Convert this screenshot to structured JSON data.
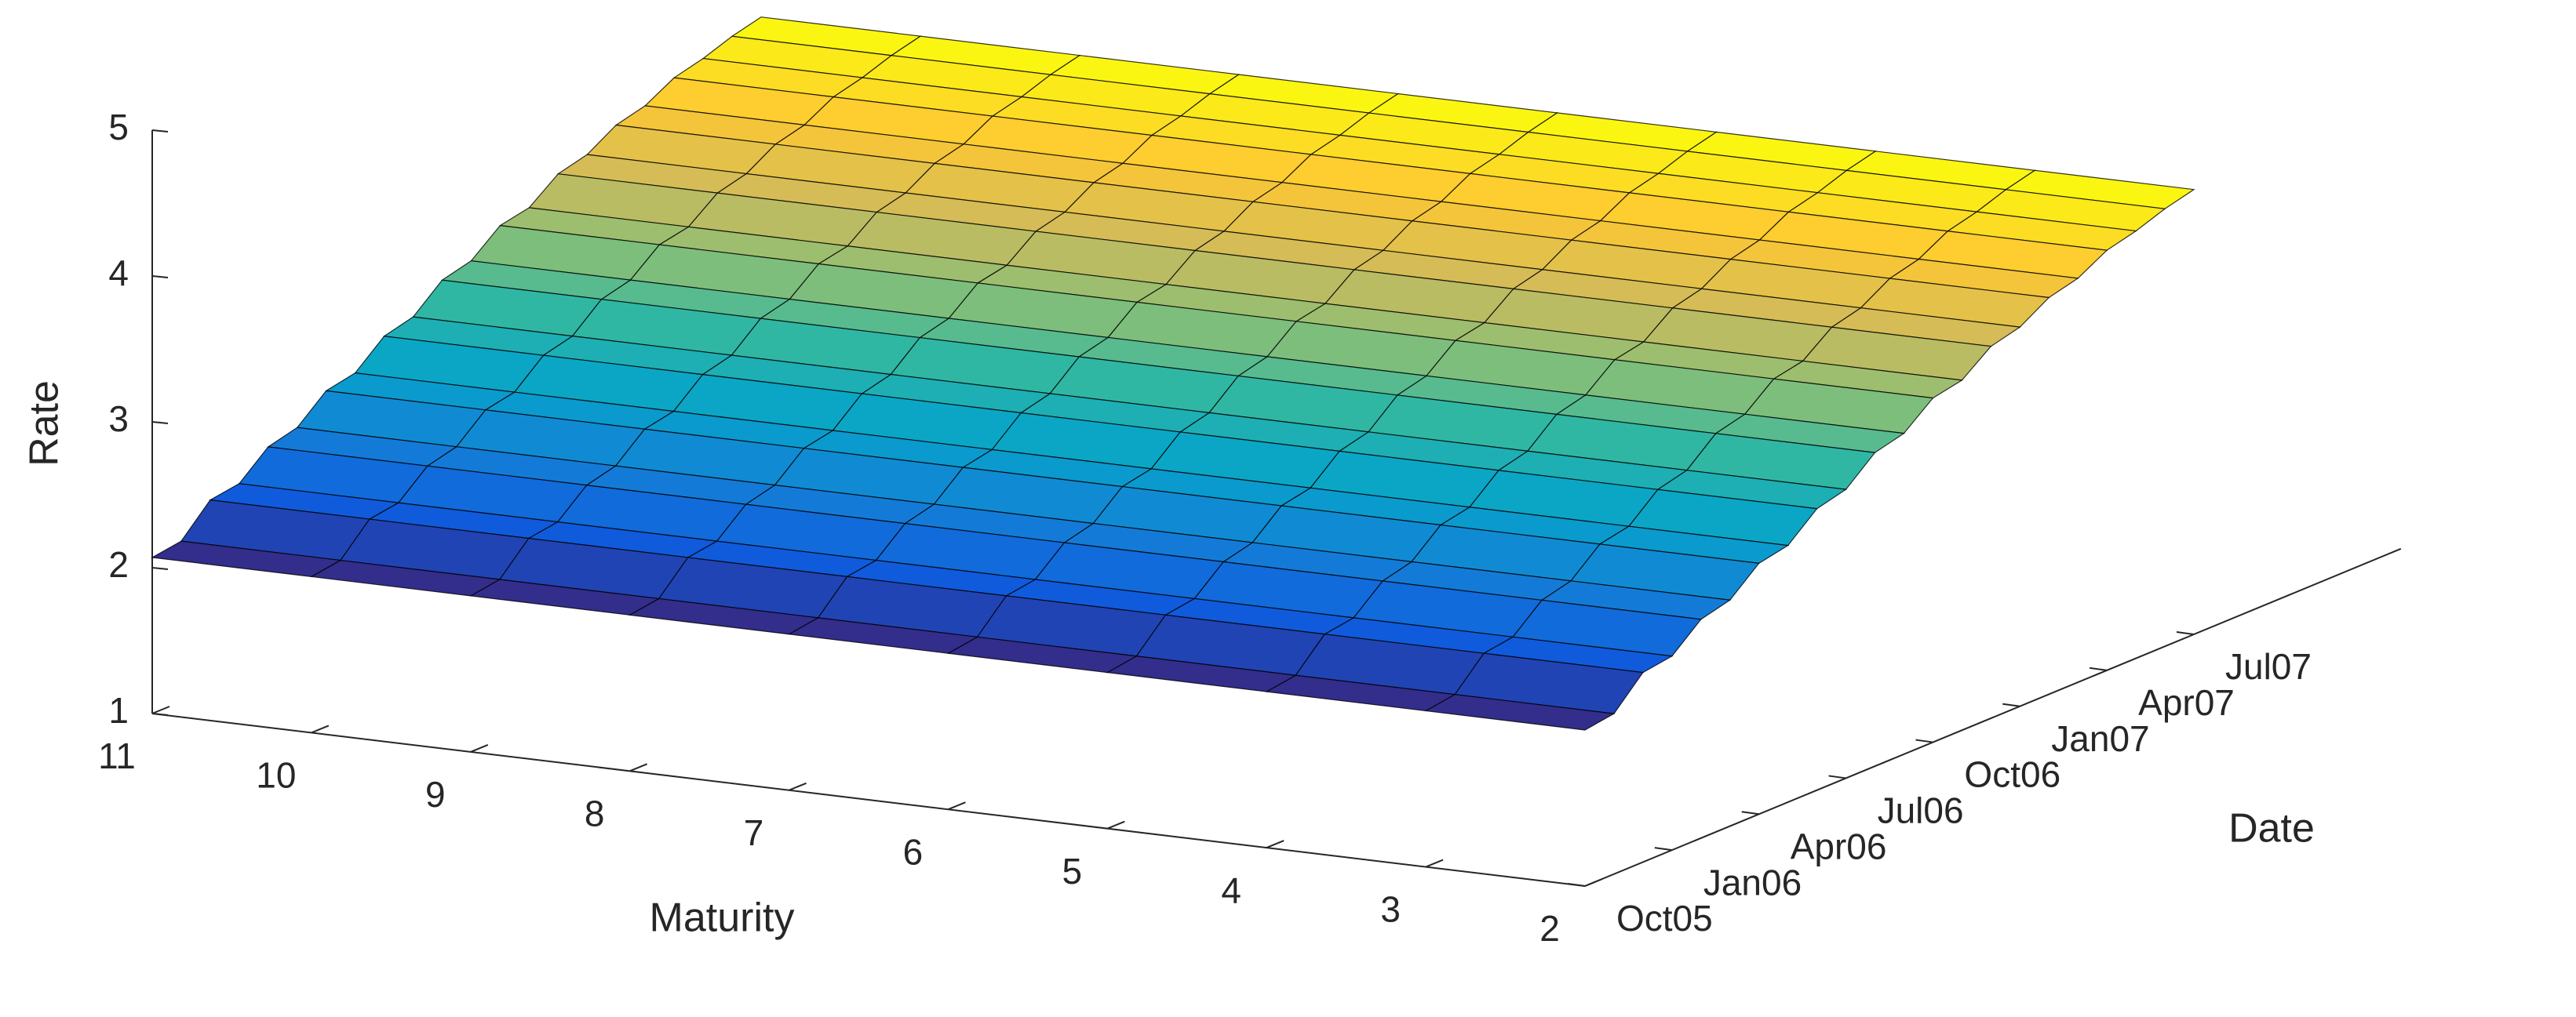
{
  "chart_data": {
    "type": "surface",
    "x_label": "Maturity",
    "y_label": "Date",
    "z_label": "Rate",
    "x": [
      2,
      3,
      4,
      5,
      6,
      7,
      8,
      9,
      10,
      11
    ],
    "xlim": [
      2,
      11
    ],
    "xticks": [
      2,
      3,
      4,
      5,
      6,
      7,
      8,
      9,
      10,
      11
    ],
    "y": [
      "Oct05",
      "Nov05",
      "Dec05",
      "Jan06",
      "Feb06",
      "Mar06",
      "Apr06",
      "May06",
      "Jun06",
      "Jul06",
      "Aug06",
      "Sep06",
      "Oct06",
      "Nov06",
      "Dec06",
      "Jan07",
      "Feb07",
      "Mar07",
      "Apr07",
      "May07",
      "Jun07",
      "Jul07"
    ],
    "yticks": [
      "Oct05",
      "Jan06",
      "Apr06",
      "Jul06",
      "Oct06",
      "Jan07",
      "Apr07",
      "Jul07"
    ],
    "zlim": [
      1,
      5
    ],
    "zticks": [
      1,
      2,
      3,
      4,
      5
    ],
    "z": [
      [
        2.07,
        2.07,
        2.07,
        2.07,
        2.07,
        2.07,
        2.07,
        2.07,
        2.07,
        2.07
      ],
      [
        2.1,
        2.1,
        2.1,
        2.1,
        2.1,
        2.1,
        2.1,
        2.1,
        2.1,
        2.1
      ],
      [
        2.3,
        2.3,
        2.3,
        2.3,
        2.3,
        2.3,
        2.3,
        2.3,
        2.3,
        2.3
      ],
      [
        2.33,
        2.33,
        2.33,
        2.33,
        2.33,
        2.33,
        2.33,
        2.33,
        2.33,
        2.33
      ],
      [
        2.5,
        2.5,
        2.5,
        2.5,
        2.5,
        2.5,
        2.5,
        2.5,
        2.5,
        2.5
      ],
      [
        2.55,
        2.55,
        2.55,
        2.55,
        2.55,
        2.55,
        2.55,
        2.55,
        2.55,
        2.55
      ],
      [
        2.72,
        2.72,
        2.72,
        2.72,
        2.72,
        2.72,
        2.72,
        2.72,
        2.72,
        2.72
      ],
      [
        2.76,
        2.76,
        2.76,
        2.76,
        2.76,
        2.76,
        2.76,
        2.76,
        2.76,
        2.76
      ],
      [
        2.93,
        2.93,
        2.93,
        2.93,
        2.93,
        2.93,
        2.93,
        2.93,
        2.93,
        2.93
      ],
      [
        2.98,
        2.98,
        2.98,
        2.98,
        2.98,
        2.98,
        2.98,
        2.98,
        2.98,
        2.98
      ],
      [
        3.15,
        3.15,
        3.15,
        3.15,
        3.15,
        3.15,
        3.15,
        3.15,
        3.15,
        3.15
      ],
      [
        3.2,
        3.2,
        3.2,
        3.2,
        3.2,
        3.2,
        3.2,
        3.2,
        3.2,
        3.2
      ],
      [
        3.36,
        3.36,
        3.36,
        3.36,
        3.36,
        3.36,
        3.36,
        3.36,
        3.36,
        3.36
      ],
      [
        3.4,
        3.4,
        3.4,
        3.4,
        3.4,
        3.4,
        3.4,
        3.4,
        3.4,
        3.4
      ],
      [
        3.55,
        3.55,
        3.55,
        3.55,
        3.55,
        3.55,
        3.55,
        3.55,
        3.55,
        3.55
      ],
      [
        3.6,
        3.6,
        3.6,
        3.6,
        3.6,
        3.6,
        3.6,
        3.6,
        3.6,
        3.6
      ],
      [
        3.72,
        3.72,
        3.72,
        3.72,
        3.72,
        3.72,
        3.72,
        3.72,
        3.72,
        3.72
      ],
      [
        3.77,
        3.77,
        3.77,
        3.77,
        3.77,
        3.77,
        3.77,
        3.77,
        3.77,
        3.77
      ],
      [
        3.88,
        3.88,
        3.88,
        3.88,
        3.88,
        3.88,
        3.88,
        3.88,
        3.88,
        3.88
      ],
      [
        3.93,
        3.93,
        3.93,
        3.93,
        3.93,
        3.93,
        3.93,
        3.93,
        3.93,
        3.93
      ],
      [
        4.0,
        4.0,
        4.0,
        4.0,
        4.0,
        4.0,
        4.0,
        4.0,
        4.0,
        4.0
      ],
      [
        4.05,
        4.05,
        4.05,
        4.05,
        4.05,
        4.05,
        4.05,
        4.05,
        4.05,
        4.05
      ]
    ],
    "colormap": [
      "#352a87",
      "#0f5cdd",
      "#1481d6",
      "#06a4ca",
      "#2eb7a4",
      "#87bf77",
      "#d1bb59",
      "#fec832",
      "#f9fb0e"
    ],
    "edgecolor": "#000000"
  }
}
